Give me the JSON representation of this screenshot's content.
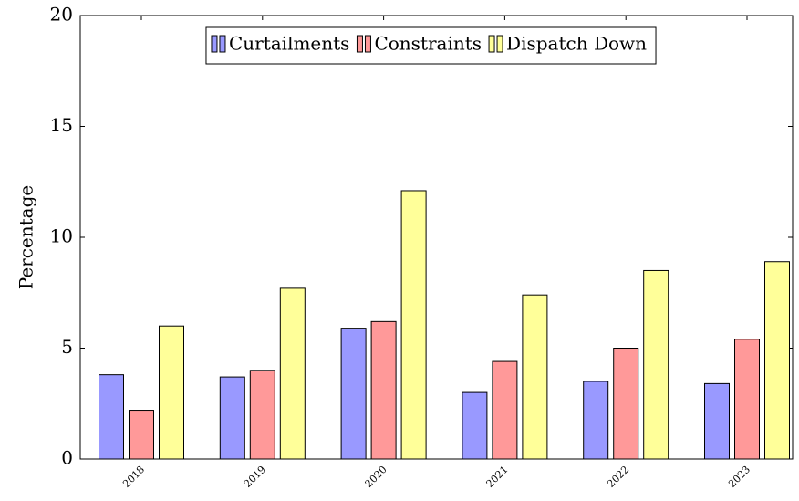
{
  "chart_data": {
    "type": "bar",
    "y_label": "Percentage",
    "categories": [
      "2018",
      "2019",
      "2020",
      "2021",
      "2022",
      "2023"
    ],
    "series": [
      {
        "name": "Curtailments",
        "color": "#9999ff",
        "values": [
          3.8,
          3.7,
          5.9,
          3.0,
          3.5,
          3.4
        ]
      },
      {
        "name": "Constraints",
        "color": "#ff9999",
        "values": [
          2.2,
          4.0,
          6.2,
          4.4,
          5.0,
          5.4
        ]
      },
      {
        "name": "Dispatch Down",
        "color": "#ffff99",
        "values": [
          6.0,
          7.7,
          12.1,
          7.4,
          8.5,
          8.9
        ]
      }
    ],
    "ylim": [
      0,
      20
    ],
    "yticks": [
      0,
      5,
      10,
      15,
      20
    ],
    "grid": false,
    "legend": "top"
  }
}
